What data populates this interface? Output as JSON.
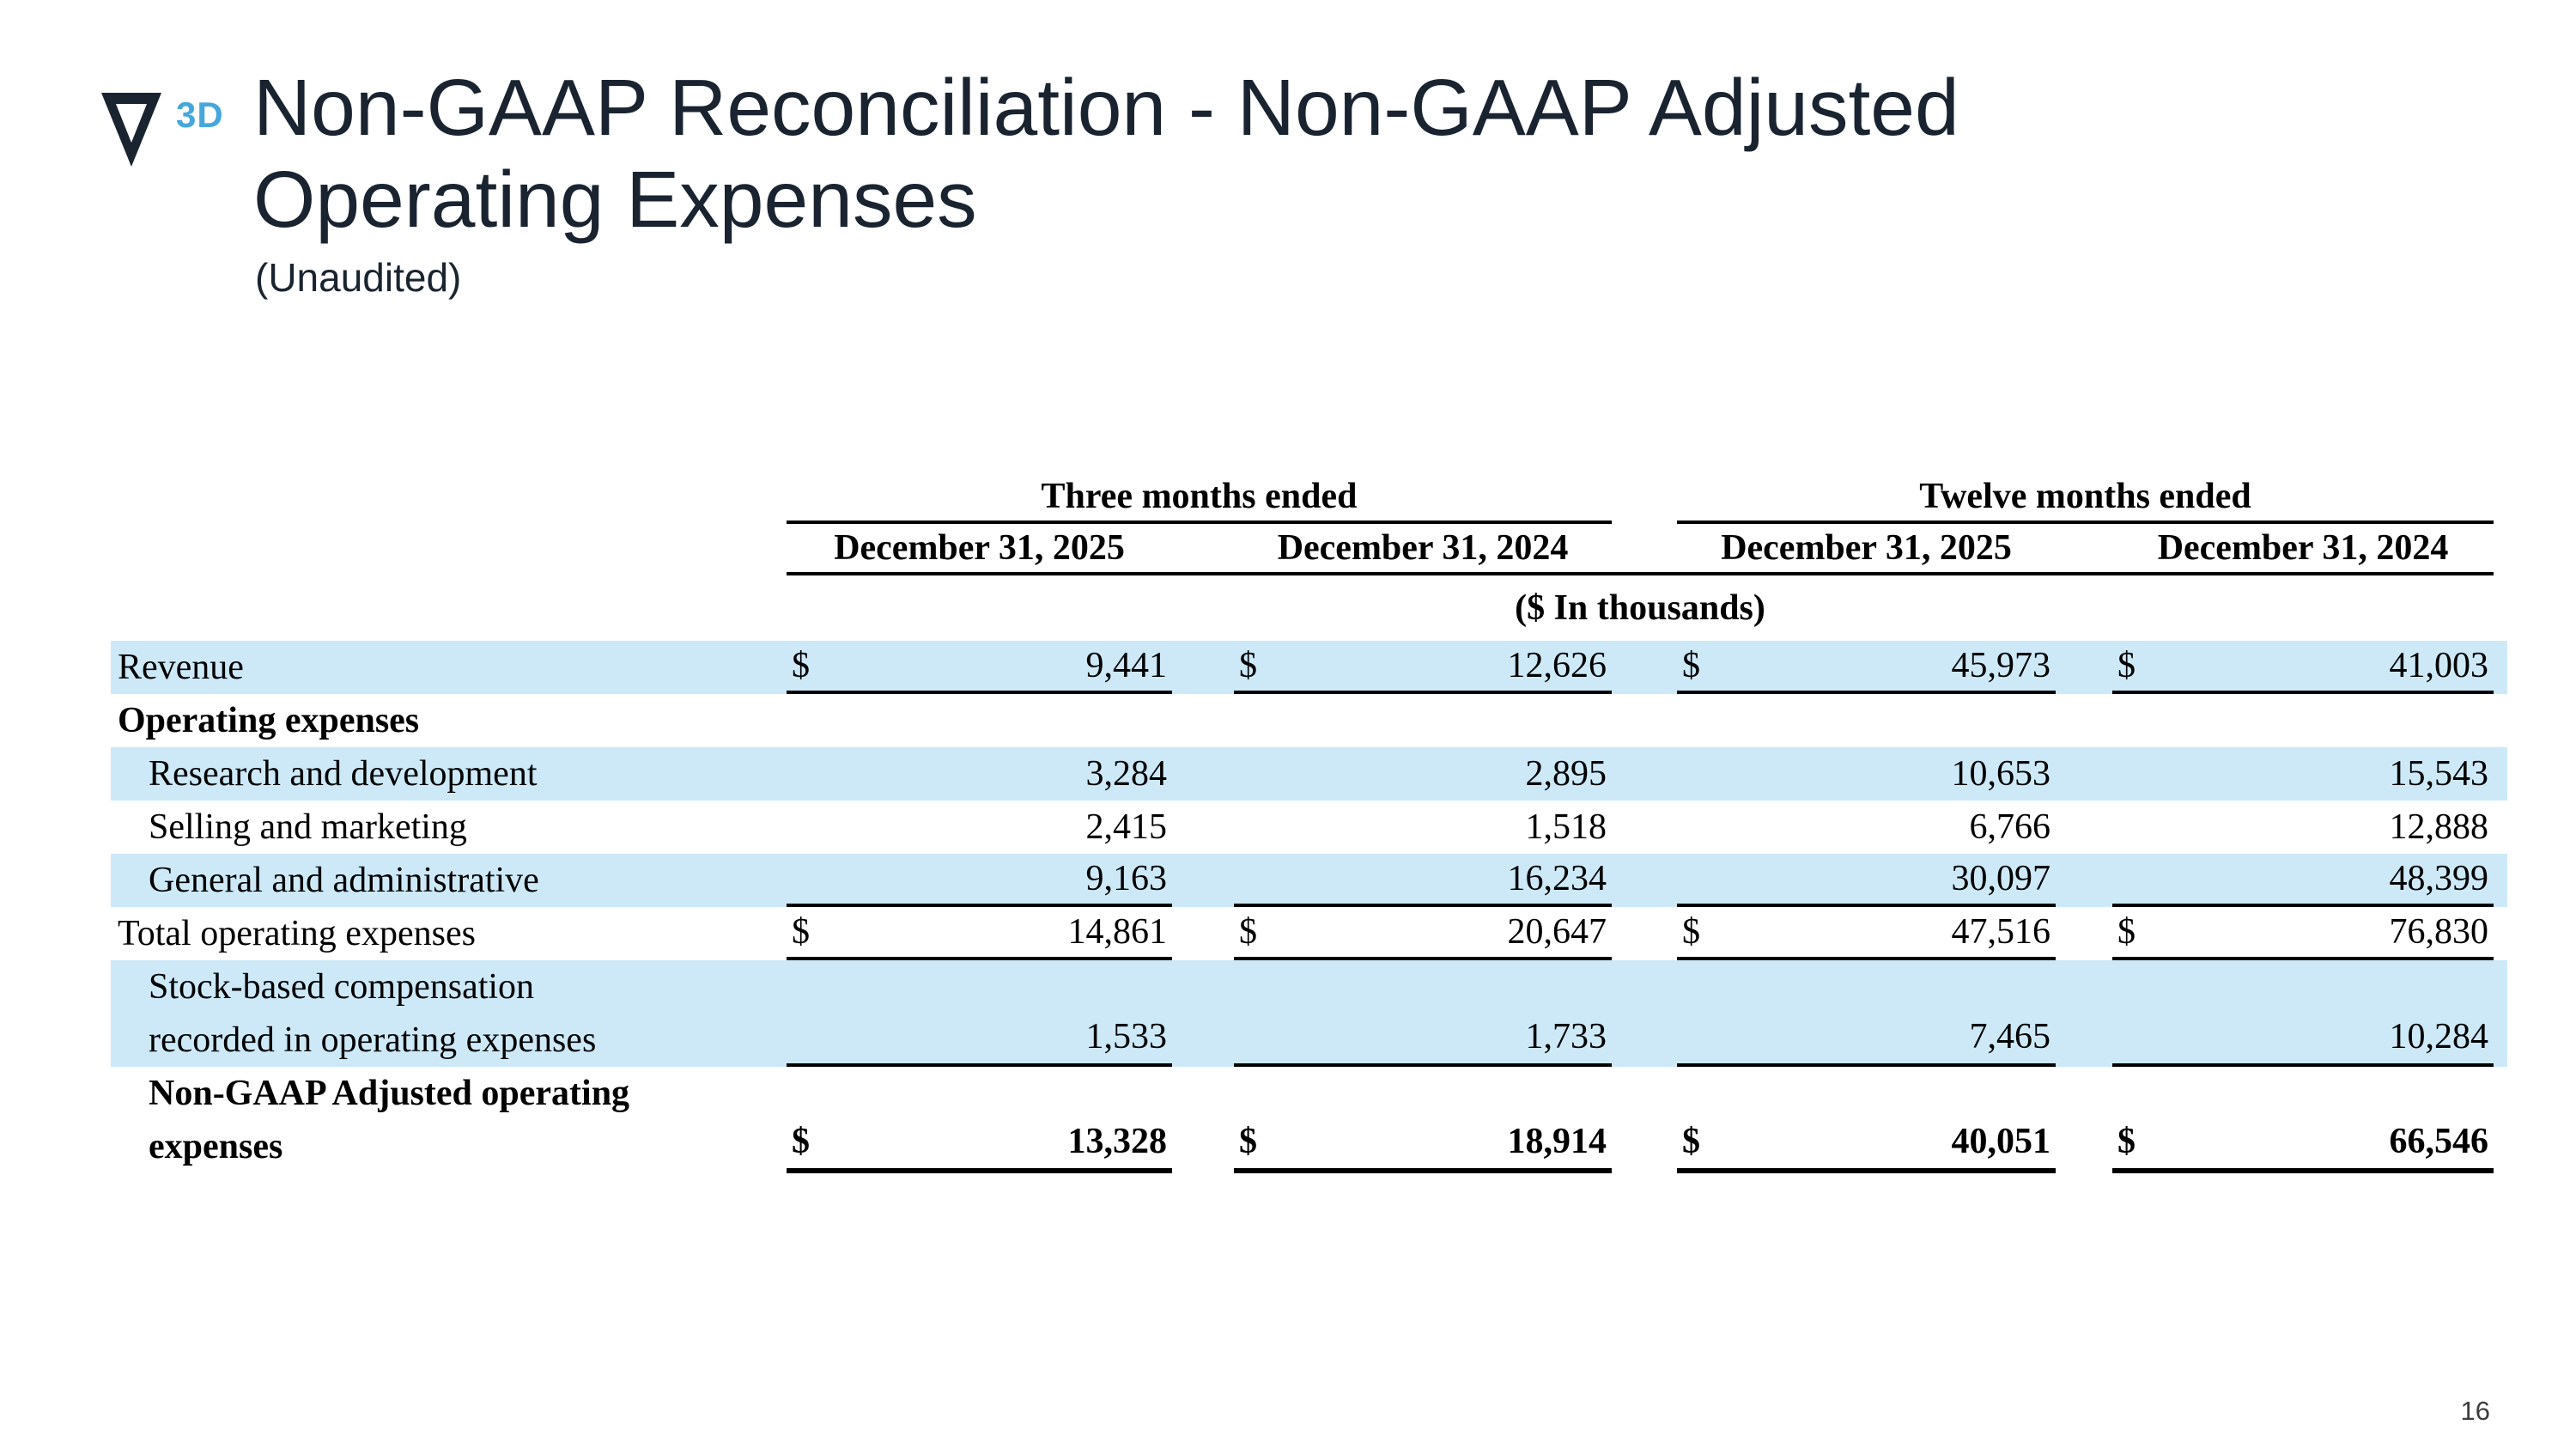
{
  "slide": {
    "logo": {
      "mark": "velo3d-triangle-logo",
      "superscript": "3D",
      "mark_color": "#1A2430",
      "accent_color": "#45A7DC"
    },
    "title_line1": "Non-GAAP Reconciliation - Non-GAAP Adjusted",
    "title_line2": "Operating Expenses",
    "subtitle": "(Unaudited)",
    "page_number": "16"
  },
  "table": {
    "currency_symbol": "$",
    "group_headers": [
      "Three months ended",
      "Twelve months ended"
    ],
    "column_headers": [
      "December 31, 2025",
      "December 31, 2024",
      "December 31, 2025",
      "December 31, 2024"
    ],
    "units_note": "($ In thousands)",
    "highlight_color": "#CDE9F8",
    "rows": [
      {
        "label": "Revenue",
        "indent": false,
        "bold": false,
        "highlight": true,
        "dollar": true,
        "values": [
          "9,441",
          "12,626",
          "45,973",
          "41,003"
        ],
        "underline": "single"
      },
      {
        "label": "Operating expenses",
        "indent": false,
        "bold": true,
        "highlight": false,
        "dollar": false,
        "values": null,
        "underline": "none"
      },
      {
        "label": "Research and development",
        "indent": true,
        "bold": false,
        "highlight": true,
        "dollar": false,
        "values": [
          "3,284",
          "2,895",
          "10,653",
          "15,543"
        ],
        "underline": "none"
      },
      {
        "label": "Selling and marketing",
        "indent": true,
        "bold": false,
        "highlight": false,
        "dollar": false,
        "values": [
          "2,415",
          "1,518",
          "6,766",
          "12,888"
        ],
        "underline": "none"
      },
      {
        "label": "General and administrative",
        "indent": true,
        "bold": false,
        "highlight": true,
        "dollar": false,
        "values": [
          "9,163",
          "16,234",
          "30,097",
          "48,399"
        ],
        "underline": "single"
      },
      {
        "label": "Total operating expenses",
        "indent": false,
        "bold": false,
        "highlight": false,
        "dollar": true,
        "values": [
          "14,861",
          "20,647",
          "47,516",
          "76,830"
        ],
        "underline": "single"
      },
      {
        "label_lines": [
          "Stock-based compensation",
          "recorded in operating expenses"
        ],
        "indent": true,
        "bold": false,
        "highlight": true,
        "dollar": false,
        "values": [
          "1,533",
          "1,733",
          "7,465",
          "10,284"
        ],
        "underline": "single"
      },
      {
        "label_lines": [
          "Non-GAAP Adjusted operating",
          "expenses"
        ],
        "indent": true,
        "bold": true,
        "highlight": false,
        "dollar": true,
        "values": [
          "13,328",
          "18,914",
          "40,051",
          "66,546"
        ],
        "underline": "total"
      }
    ]
  }
}
